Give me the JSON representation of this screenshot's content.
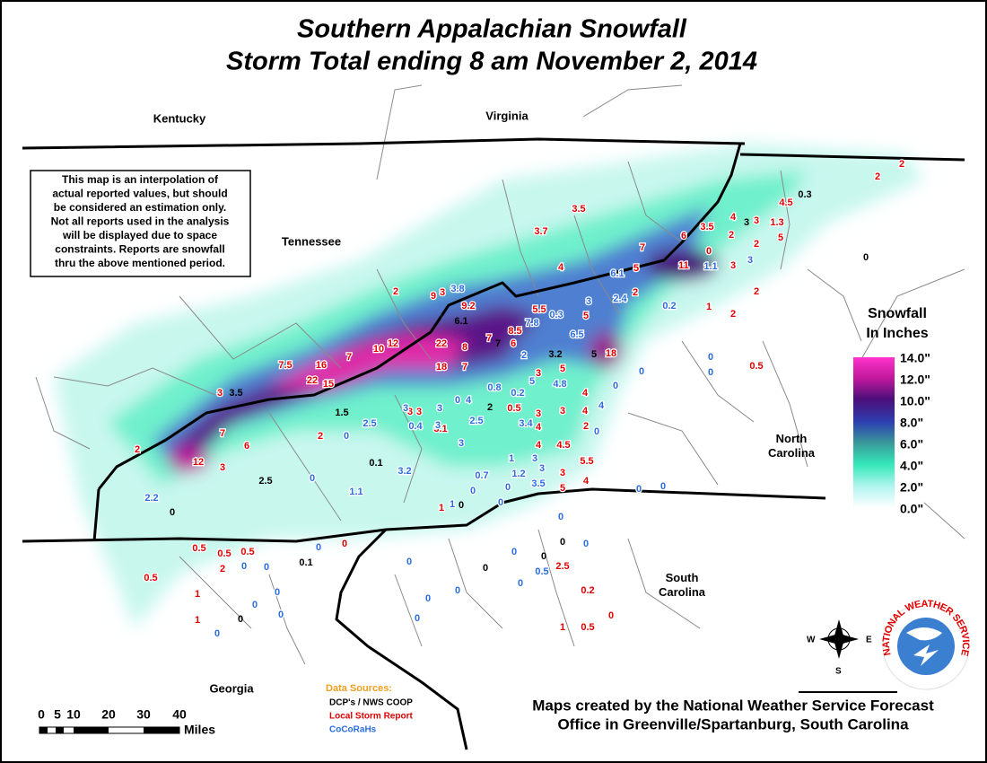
{
  "title": [
    "Southern Appalachian Snowfall",
    "Storm Total ending 8 am November 2, 2014"
  ],
  "states": [
    "Kentucky",
    "Virginia",
    "Tennessee",
    "North Carolina",
    "South Carolina",
    "Georgia"
  ],
  "disclaimer": [
    "This map is an interpolation of",
    "actual reported values, but should",
    "be considered an estimation only.",
    "Not all reports used in the analysis",
    "will be displayed due to space",
    "constraints. Reports are snowfall",
    "thru the above mentioned period."
  ],
  "legend": {
    "title": [
      "Snowfall",
      "In Inches"
    ],
    "ticks": [
      "14.0\"",
      "12.0\"",
      "10.0\"",
      "8.0\"",
      "6.0\"",
      "4.0\"",
      "2.0\"",
      "0.0\""
    ]
  },
  "sources": {
    "title": "Data Sources:",
    "items": [
      "DCP's / NWS COOP",
      "Local Storm Report",
      "CoCoRaHs"
    ]
  },
  "scale": {
    "ticks": [
      "0",
      "5",
      "10",
      "20",
      "30",
      "40"
    ],
    "unit": "Miles"
  },
  "credit": [
    "Maps created by the National Weather Service Forecast",
    "Office in Greenville/Spartanburg, South Carolina"
  ],
  "compass": [
    "W",
    "E",
    "S"
  ],
  "logo": "NATIONAL WEATHER SERVICE",
  "reports": {
    "lsr": [
      "2",
      "2",
      "4.5",
      "3.5",
      "3.7",
      "4",
      "3",
      "1.3",
      "3.5",
      "2",
      "5",
      "6",
      "7",
      "2",
      "0",
      "3",
      "11",
      "5",
      "4",
      "2",
      "9",
      "3",
      "9.2",
      "2",
      "2",
      "1",
      "2",
      "5.5",
      "5",
      "8.5",
      "7",
      "6",
      "22",
      "8",
      "12",
      "10",
      "7",
      "18",
      "18",
      "7",
      "7.5",
      "16",
      "22",
      "15",
      "0.5",
      "3",
      "5",
      "3",
      "4",
      "0.5",
      "3",
      "3",
      "4",
      "3",
      "3",
      "3.1",
      "2",
      "7",
      "6",
      "4",
      "2",
      "4",
      "4.5",
      "2",
      "12",
      "3",
      "5.5",
      "3",
      "5",
      "4",
      "1",
      "0.5",
      "0.5",
      "0.5",
      "2",
      "0",
      "0.5",
      "2.5",
      "0.2",
      "1",
      "1",
      "0",
      "1",
      "0.5"
    ],
    "cocorahs": [
      "3.8",
      "6.1",
      "2.4",
      "1.1",
      "3",
      "3",
      "0.3",
      "7.8",
      "0.2",
      "6.5",
      "2",
      "0",
      "0",
      "0",
      "5",
      "4.8",
      "0.8",
      "0.2",
      "0",
      "3",
      "3",
      "0",
      "4",
      "2.5",
      "0.4",
      "3",
      "2.5",
      "3.4",
      "4",
      "0",
      "0",
      "3",
      "1",
      "3",
      "3",
      "3.2",
      "0.7",
      "1.2",
      "0",
      "3.5",
      "0",
      "0",
      "1.1",
      "2.2",
      "0",
      "0",
      "1",
      "0",
      "0",
      "0",
      "0",
      "0",
      "0.5",
      "0",
      "0",
      "0",
      "0",
      "0",
      "0",
      "0",
      "0",
      "0",
      "0",
      "0"
    ],
    "coop": [
      "0.3",
      "3",
      "0",
      "6.1",
      "7",
      "3.2",
      "5",
      "3.5",
      "1.5",
      "2",
      "0.1",
      "2.5",
      "0",
      "0",
      "0",
      "0.1",
      "0",
      "0",
      "0"
    ]
  }
}
